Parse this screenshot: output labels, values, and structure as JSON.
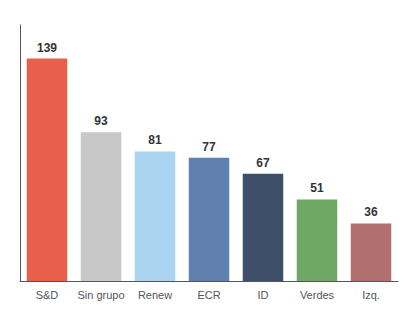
{
  "chart_data": {
    "type": "bar",
    "categories": [
      "S&D",
      "Sin grupo",
      "Renew",
      "ECR",
      "ID",
      "Verdes",
      "Izq."
    ],
    "values": [
      139,
      93,
      81,
      77,
      67,
      51,
      36
    ],
    "colors": [
      "#e8604c",
      "#c8c8c8",
      "#aad4f0",
      "#6080b0",
      "#3d4f6a",
      "#6fa864",
      "#b07070"
    ],
    "ylim": [
      0,
      160
    ],
    "grid": false,
    "data_labels": true,
    "tick_labels": "x"
  }
}
